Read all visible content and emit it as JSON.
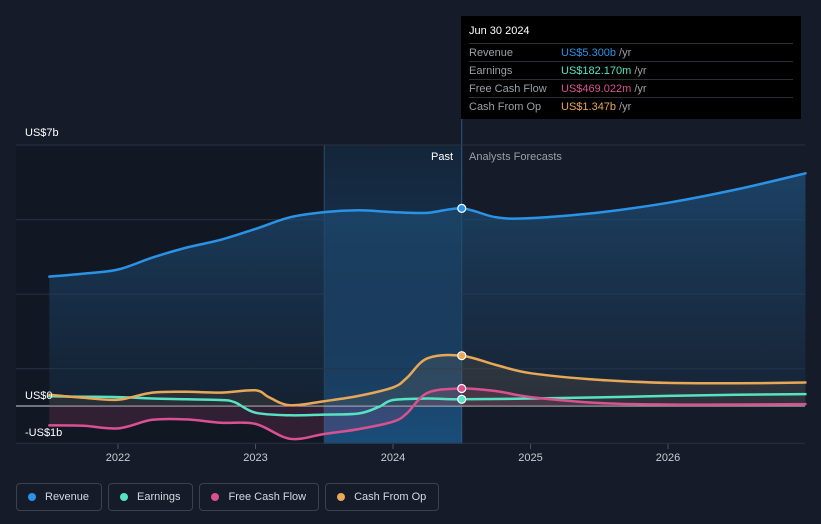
{
  "chart_data": {
    "type": "area",
    "title": "",
    "y_unit_labels": {
      "top": "US$7b",
      "zero": "US$0",
      "bottom": "-US$1b"
    },
    "ylim": [
      -1,
      7
    ],
    "xlim": [
      2021.5,
      2027.0
    ],
    "x_ticks": [
      "2022",
      "2023",
      "2024",
      "2025",
      "2026"
    ],
    "x_tick_values": [
      2022,
      2023,
      2024,
      2025,
      2026
    ],
    "past_label": "Past",
    "forecast_label": "Analysts Forecasts",
    "divider_x": 2024.5,
    "highlight_start_x": 2023.5,
    "series": [
      {
        "name": "Revenue",
        "color": "#2b93e6",
        "fill": true,
        "points": [
          [
            2021.5,
            3.47
          ],
          [
            2021.75,
            3.55
          ],
          [
            2022.0,
            3.66
          ],
          [
            2022.25,
            3.98
          ],
          [
            2022.5,
            4.25
          ],
          [
            2022.75,
            4.46
          ],
          [
            2023.0,
            4.75
          ],
          [
            2023.25,
            5.06
          ],
          [
            2023.5,
            5.2
          ],
          [
            2023.75,
            5.25
          ],
          [
            2024.0,
            5.2
          ],
          [
            2024.25,
            5.18
          ],
          [
            2024.5,
            5.3
          ],
          [
            2024.75,
            5.06
          ],
          [
            2025.0,
            5.04
          ],
          [
            2025.5,
            5.19
          ],
          [
            2026.0,
            5.45
          ],
          [
            2026.5,
            5.81
          ],
          [
            2027.0,
            6.24
          ]
        ]
      },
      {
        "name": "Earnings",
        "color": "#56e3c3",
        "fill": false,
        "points": [
          [
            2021.5,
            0.26
          ],
          [
            2021.75,
            0.25
          ],
          [
            2022.0,
            0.24
          ],
          [
            2022.25,
            0.2
          ],
          [
            2022.5,
            0.18
          ],
          [
            2022.75,
            0.16
          ],
          [
            2022.85,
            0.1
          ],
          [
            2023.0,
            -0.18
          ],
          [
            2023.25,
            -0.25
          ],
          [
            2023.5,
            -0.23
          ],
          [
            2023.75,
            -0.2
          ],
          [
            2023.9,
            -0.02
          ],
          [
            2024.0,
            0.16
          ],
          [
            2024.25,
            0.2
          ],
          [
            2024.5,
            0.18
          ],
          [
            2025.0,
            0.2
          ],
          [
            2025.5,
            0.23
          ],
          [
            2026.0,
            0.27
          ],
          [
            2026.5,
            0.3
          ],
          [
            2027.0,
            0.32
          ]
        ]
      },
      {
        "name": "Free Cash Flow",
        "color": "#d9518f",
        "fill": true,
        "points": [
          [
            2021.5,
            -0.52
          ],
          [
            2021.75,
            -0.53
          ],
          [
            2022.0,
            -0.6
          ],
          [
            2022.25,
            -0.37
          ],
          [
            2022.5,
            -0.36
          ],
          [
            2022.75,
            -0.45
          ],
          [
            2023.0,
            -0.48
          ],
          [
            2023.25,
            -0.88
          ],
          [
            2023.5,
            -0.75
          ],
          [
            2023.75,
            -0.62
          ],
          [
            2024.0,
            -0.42
          ],
          [
            2024.1,
            -0.2
          ],
          [
            2024.25,
            0.35
          ],
          [
            2024.5,
            0.47
          ],
          [
            2024.75,
            0.4
          ],
          [
            2025.0,
            0.24
          ],
          [
            2025.5,
            0.08
          ],
          [
            2026.0,
            0.04
          ],
          [
            2026.5,
            0.04
          ],
          [
            2027.0,
            0.05
          ]
        ]
      },
      {
        "name": "Cash From Op",
        "color": "#e7a857",
        "fill": true,
        "points": [
          [
            2021.5,
            0.3
          ],
          [
            2021.75,
            0.22
          ],
          [
            2022.0,
            0.17
          ],
          [
            2022.25,
            0.36
          ],
          [
            2022.5,
            0.38
          ],
          [
            2022.75,
            0.36
          ],
          [
            2023.0,
            0.42
          ],
          [
            2023.1,
            0.23
          ],
          [
            2023.25,
            0.02
          ],
          [
            2023.5,
            0.13
          ],
          [
            2023.75,
            0.27
          ],
          [
            2024.0,
            0.5
          ],
          [
            2024.1,
            0.75
          ],
          [
            2024.25,
            1.28
          ],
          [
            2024.5,
            1.35
          ],
          [
            2024.75,
            1.1
          ],
          [
            2025.0,
            0.88
          ],
          [
            2025.5,
            0.7
          ],
          [
            2026.0,
            0.62
          ],
          [
            2026.5,
            0.61
          ],
          [
            2027.0,
            0.63
          ]
        ]
      }
    ]
  },
  "tooltip": {
    "date": "Jun 30 2024",
    "rows": [
      {
        "label": "Revenue",
        "value": "US$5.300b",
        "unit": "/yr",
        "color": "#2b93e6"
      },
      {
        "label": "Earnings",
        "value": "US$182.170m",
        "unit": "/yr",
        "color": "#56e3c3"
      },
      {
        "label": "Free Cash Flow",
        "value": "US$469.022m",
        "unit": "/yr",
        "color": "#d9518f"
      },
      {
        "label": "Cash From Op",
        "value": "US$1.347b",
        "unit": "/yr",
        "color": "#e7a857"
      }
    ]
  },
  "legend": [
    {
      "label": "Revenue",
      "color": "#2b93e6"
    },
    {
      "label": "Earnings",
      "color": "#56e3c3"
    },
    {
      "label": "Free Cash Flow",
      "color": "#d9518f"
    },
    {
      "label": "Cash From Op",
      "color": "#e7a857"
    }
  ]
}
